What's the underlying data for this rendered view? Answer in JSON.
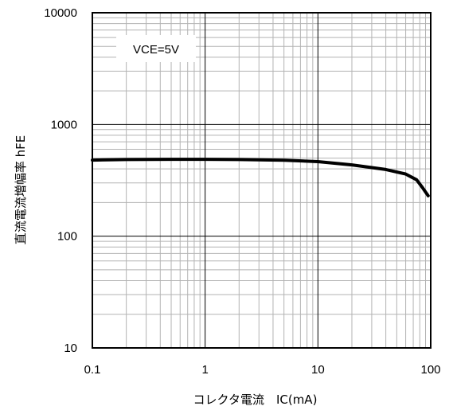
{
  "chart_data": {
    "type": "line",
    "xlabel": "コレクタ電流　IC(mA)",
    "ylabel": "直流電流増幅率 hFE",
    "xscale": "log",
    "yscale": "log",
    "xlim": [
      0.1,
      100
    ],
    "ylim": [
      10,
      10000
    ],
    "grid": true,
    "x_ticks": [
      "0.1",
      "1",
      "10",
      "100"
    ],
    "y_ticks": [
      "10",
      "100",
      "1000",
      "10000"
    ],
    "annotation": "VCE=5V",
    "series": [
      {
        "x": [
          0.1,
          0.2,
          0.5,
          1,
          2,
          5,
          10,
          20,
          40,
          60,
          75,
          85,
          95
        ],
        "y": [
          480,
          485,
          488,
          488,
          485,
          478,
          465,
          435,
          395,
          360,
          320,
          270,
          230
        ]
      }
    ]
  }
}
